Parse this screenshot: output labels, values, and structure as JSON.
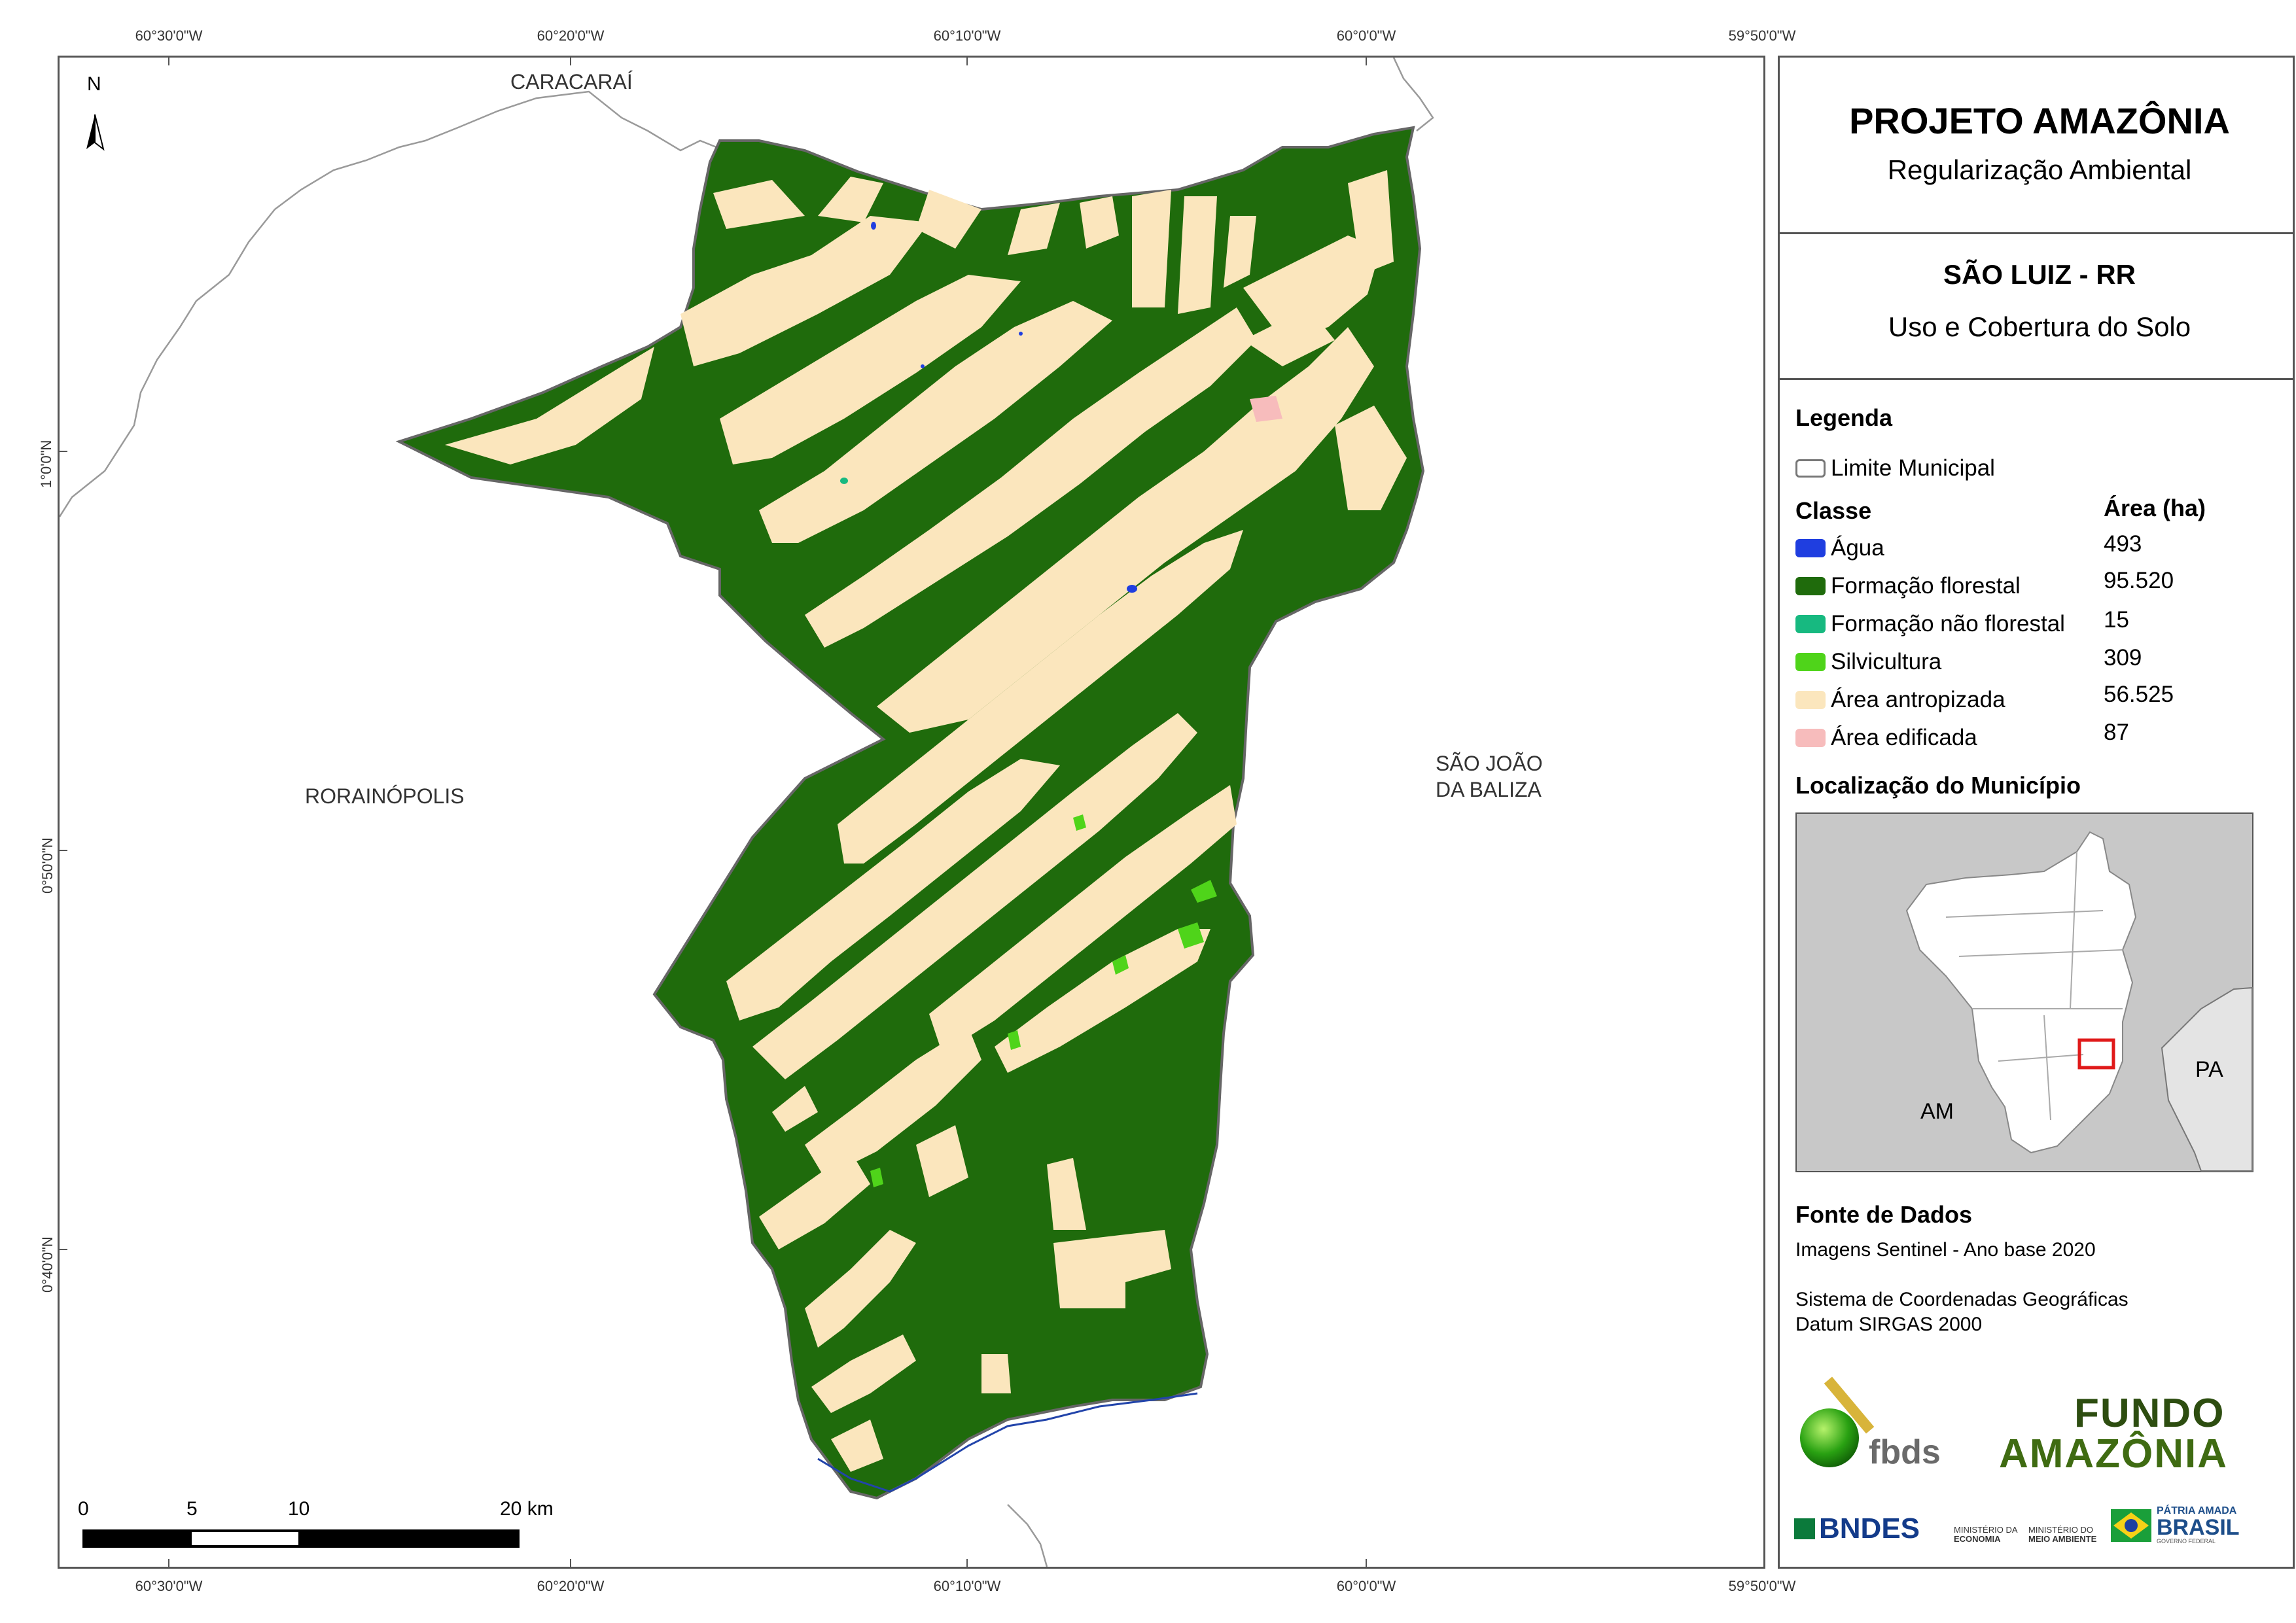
{
  "map": {
    "coordinates": {
      "top": [
        "60°30'0\"W",
        "60°20'0\"W",
        "60°10'0\"W",
        "60°0'0\"W",
        "59°50'0\"W"
      ],
      "bottom": [
        "60°30'0\"W",
        "60°20'0\"W",
        "60°10'0\"W",
        "60°0'0\"W",
        "59°50'0\"W"
      ],
      "left": [
        "1°0'0\"N",
        "0°50'0\"N",
        "0°40'0\"N"
      ]
    },
    "north_arrow": "N",
    "places": {
      "caracarai": "CARACARAÍ",
      "rorainopolis": "RORAINÓPOLIS",
      "sao_joao_line1": "SÃO JOÃO",
      "sao_joao_line2": "DA BALIZA"
    },
    "scale": {
      "labels": [
        "0",
        "5",
        "10",
        "20 km"
      ]
    },
    "colors": {
      "forest": "#1f6b0c",
      "anthropized": "#fbe6bd",
      "water": "#1f3ee0",
      "built": "#f7bcbc",
      "silviculture": "#4fd41a",
      "non_forest": "#17b980"
    }
  },
  "panel": {
    "title": "PROJETO AMAZÔNIA",
    "subtitle": "Regularização Ambiental",
    "municipality": "SÃO LUIZ - RR",
    "theme": "Uso e Cobertura do Solo",
    "legend_title": "Legenda",
    "boundary_label": "Limite Municipal",
    "class_header": "Classe",
    "area_header": "Área (ha)",
    "classes": [
      {
        "name": "Água",
        "area": "493",
        "color": "#1f3ee0"
      },
      {
        "name": "Formação florestal",
        "area": "95.520",
        "color": "#1f6b0c"
      },
      {
        "name": "Formação não florestal",
        "area": "15",
        "color": "#17b980"
      },
      {
        "name": "Silvicultura",
        "area": "309",
        "color": "#4fd41a"
      },
      {
        "name": "Área antropizada",
        "area": "56.525",
        "color": "#fbe6bd"
      },
      {
        "name": "Área edificada",
        "area": "87",
        "color": "#f7bcbc"
      }
    ],
    "location_title": "Localização do Município",
    "inset_am": "AM",
    "inset_pa": "PA",
    "source_title": "Fonte de Dados",
    "source_line1": "Imagens Sentinel - Ano base 2020",
    "source_line2": "Sistema de Coordenadas Geográficas",
    "source_line3": "Datum SIRGAS 2000",
    "logos": {
      "fbds": "fbds",
      "fundo1": "FUNDO",
      "fundo2": "AMAZÔNIA",
      "bndes": "BNDES",
      "min1a": "MINISTÉRIO DA",
      "min1b": "ECONOMIA",
      "min2a": "MINISTÉRIO DO",
      "min2b": "MEIO AMBIENTE",
      "patria1": "PÁTRIA AMADA",
      "patria2": "BRASIL",
      "patria3": "GOVERNO FEDERAL"
    }
  }
}
